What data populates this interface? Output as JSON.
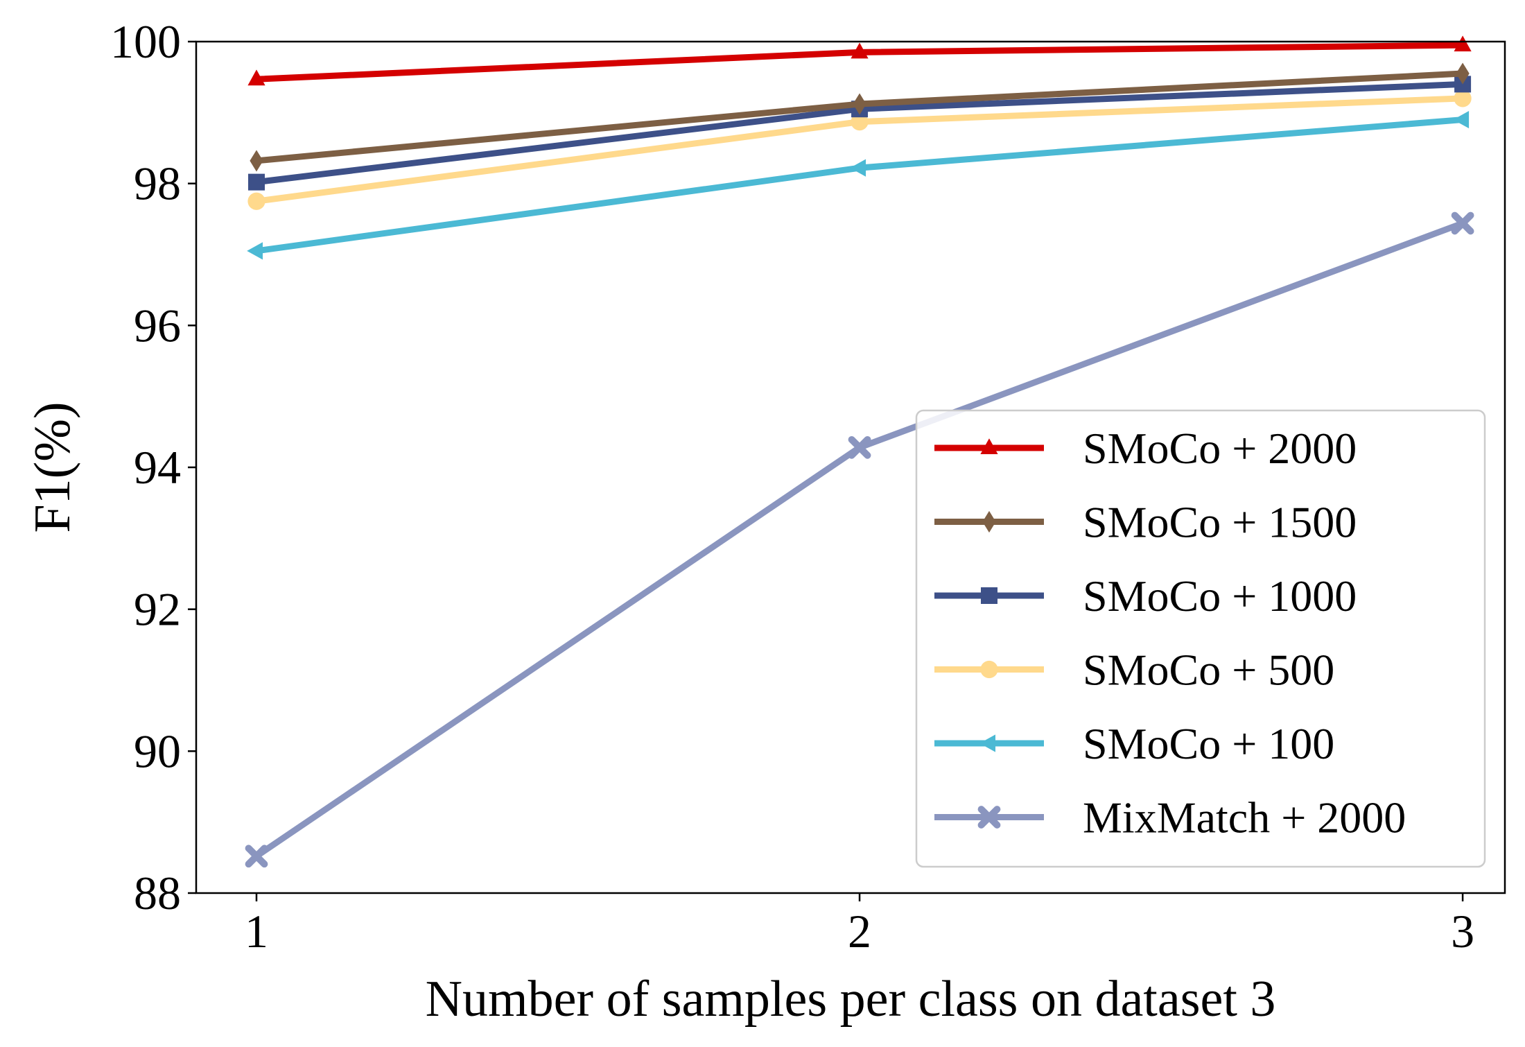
{
  "chart_data": {
    "type": "line",
    "title": "",
    "xlabel": "Number of samples per class on dataset 3",
    "ylabel": "F1(%)",
    "x": [
      1,
      2,
      3
    ],
    "x_tick_labels": [
      "1",
      "2",
      "3"
    ],
    "xlim": [
      0.9,
      3.07
    ],
    "ylim": [
      88,
      100
    ],
    "y_ticks": [
      88,
      90,
      92,
      94,
      96,
      98,
      100
    ],
    "y_tick_labels": [
      "88",
      "90",
      "92",
      "94",
      "96",
      "98",
      "100"
    ],
    "grid": false,
    "legend_position": "bottom-right",
    "series": [
      {
        "name": "SMoCo + 2000",
        "color": "#d40000",
        "marker": "triangle-up",
        "values": [
          99.47,
          99.85,
          99.95
        ]
      },
      {
        "name": "SMoCo + 1500",
        "color": "#7d5f44",
        "marker": "diamond",
        "values": [
          98.32,
          99.12,
          99.55
        ]
      },
      {
        "name": "SMoCo + 1000",
        "color": "#3d5088",
        "marker": "square",
        "values": [
          98.02,
          99.05,
          99.4
        ]
      },
      {
        "name": "SMoCo + 500",
        "color": "#ffd98c",
        "marker": "circle",
        "values": [
          97.75,
          98.87,
          99.2
        ]
      },
      {
        "name": "SMoCo + 100",
        "color": "#4bb9d4",
        "marker": "triangle-left",
        "values": [
          97.05,
          98.22,
          98.9
        ]
      },
      {
        "name": "MixMatch + 2000",
        "color": "#8a95bf",
        "marker": "x",
        "values": [
          88.52,
          94.28,
          97.44
        ]
      }
    ]
  }
}
